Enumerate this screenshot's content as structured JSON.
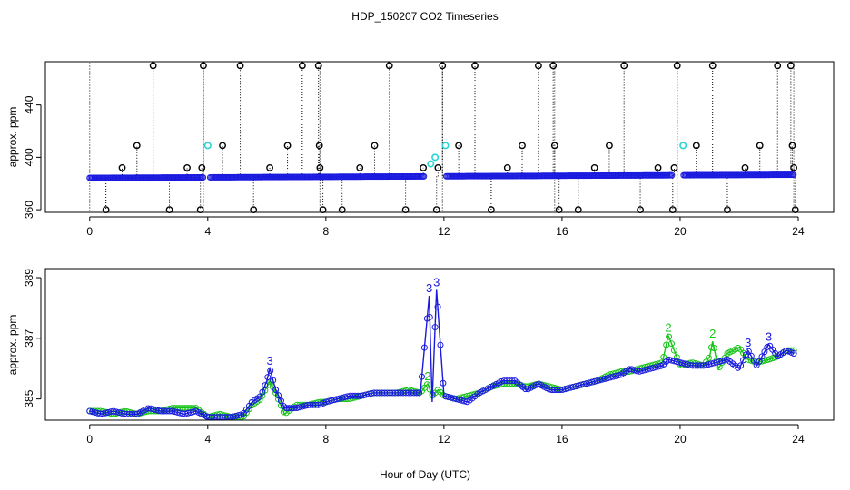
{
  "figure": {
    "title": "HDP_150207  CO2 Timeseries",
    "xlabel": "Hour of Day (UTC)"
  },
  "colors": {
    "series_main": "#1a1adf",
    "series_alt": "#19c419",
    "flag_marker": "#000000",
    "cyan_marker": "#2ad4d4",
    "frame": "#000000"
  },
  "chart_data": [
    {
      "type": "scatter",
      "name": "top-panel",
      "title": "",
      "xlabel": "",
      "ylabel": "approx. ppm",
      "xlim": [
        -1.5,
        25.2
      ],
      "ylim": [
        358,
        473
      ],
      "xticks": [
        0,
        4,
        8,
        12,
        16,
        20,
        24
      ],
      "yticks": [
        360,
        400,
        440
      ],
      "baseline": {
        "x_start": 0.0,
        "x_end": 23.85,
        "y_start": 384.3,
        "y_end": 386.7,
        "gaps": [
          [
            3.85,
            4.05
          ],
          [
            11.35,
            12.05
          ],
          [
            19.75,
            20.1
          ]
        ]
      },
      "spike_markers": [
        {
          "x": 0.55,
          "y": 360
        },
        {
          "x": 1.1,
          "y": 392
        },
        {
          "x": 1.6,
          "y": 409
        },
        {
          "x": 2.15,
          "y": 470
        },
        {
          "x": 2.7,
          "y": 360
        },
        {
          "x": 3.3,
          "y": 392
        },
        {
          "x": 3.75,
          "y": 360
        },
        {
          "x": 3.8,
          "y": 392
        },
        {
          "x": 3.85,
          "y": 470
        },
        {
          "x": 4.5,
          "y": 409
        },
        {
          "x": 5.1,
          "y": 470
        },
        {
          "x": 5.55,
          "y": 360
        },
        {
          "x": 6.1,
          "y": 392
        },
        {
          "x": 6.7,
          "y": 409
        },
        {
          "x": 7.2,
          "y": 470
        },
        {
          "x": 7.75,
          "y": 470
        },
        {
          "x": 7.78,
          "y": 409
        },
        {
          "x": 7.8,
          "y": 392
        },
        {
          "x": 7.9,
          "y": 360
        },
        {
          "x": 8.55,
          "y": 360
        },
        {
          "x": 9.15,
          "y": 392
        },
        {
          "x": 9.65,
          "y": 409
        },
        {
          "x": 10.15,
          "y": 470
        },
        {
          "x": 10.7,
          "y": 360
        },
        {
          "x": 11.3,
          "y": 392
        },
        {
          "x": 11.75,
          "y": 360
        },
        {
          "x": 11.8,
          "y": 392
        },
        {
          "x": 11.95,
          "y": 470
        },
        {
          "x": 12.5,
          "y": 409
        },
        {
          "x": 13.05,
          "y": 470
        },
        {
          "x": 13.6,
          "y": 360
        },
        {
          "x": 14.15,
          "y": 392
        },
        {
          "x": 14.65,
          "y": 409
        },
        {
          "x": 15.2,
          "y": 470
        },
        {
          "x": 15.7,
          "y": 470
        },
        {
          "x": 15.75,
          "y": 409
        },
        {
          "x": 15.9,
          "y": 360
        },
        {
          "x": 16.55,
          "y": 360
        },
        {
          "x": 17.1,
          "y": 392
        },
        {
          "x": 17.6,
          "y": 409
        },
        {
          "x": 18.1,
          "y": 470
        },
        {
          "x": 18.65,
          "y": 360
        },
        {
          "x": 19.25,
          "y": 392
        },
        {
          "x": 19.75,
          "y": 360
        },
        {
          "x": 19.8,
          "y": 392
        },
        {
          "x": 19.9,
          "y": 470
        },
        {
          "x": 20.55,
          "y": 409
        },
        {
          "x": 21.1,
          "y": 470
        },
        {
          "x": 21.6,
          "y": 360
        },
        {
          "x": 22.2,
          "y": 392
        },
        {
          "x": 22.7,
          "y": 409
        },
        {
          "x": 23.3,
          "y": 470
        },
        {
          "x": 23.75,
          "y": 470
        },
        {
          "x": 23.8,
          "y": 409
        },
        {
          "x": 23.85,
          "y": 392
        },
        {
          "x": 23.9,
          "y": 360
        }
      ],
      "cyan_markers": [
        {
          "x": 4.0,
          "y": 409
        },
        {
          "x": 11.55,
          "y": 395
        },
        {
          "x": 11.7,
          "y": 400
        },
        {
          "x": 12.05,
          "y": 409
        },
        {
          "x": 20.1,
          "y": 409
        }
      ],
      "dotted_flag_lines": [
        0.0,
        3.85,
        7.8,
        11.95,
        15.75,
        19.9,
        23.85
      ]
    },
    {
      "type": "line",
      "name": "bottom-panel",
      "title": "",
      "xlabel": "Hour of Day (UTC)",
      "ylabel": "approx. ppm",
      "xlim": [
        -1.5,
        25.2
      ],
      "ylim": [
        384.3,
        389.3
      ],
      "xticks": [
        0,
        4,
        8,
        12,
        16,
        20,
        24
      ],
      "yticks": [
        385,
        387,
        389
      ],
      "series": [
        {
          "name": "3",
          "marker": "o",
          "points": [
            [
              0.0,
              384.6
            ],
            [
              0.4,
              384.5
            ],
            [
              0.8,
              384.6
            ],
            [
              1.2,
              384.5
            ],
            [
              1.6,
              384.5
            ],
            [
              2.0,
              384.7
            ],
            [
              2.4,
              384.6
            ],
            [
              2.8,
              384.6
            ],
            [
              3.2,
              384.5
            ],
            [
              3.6,
              384.6
            ],
            [
              4.0,
              384.4
            ],
            [
              4.4,
              384.4
            ],
            [
              4.8,
              384.4
            ],
            [
              5.2,
              384.5
            ],
            [
              5.5,
              384.9
            ],
            [
              5.8,
              385.1
            ],
            [
              6.0,
              385.6
            ],
            [
              6.1,
              386.0
            ],
            [
              6.3,
              385.3
            ],
            [
              6.6,
              384.7
            ],
            [
              7.0,
              384.7
            ],
            [
              7.4,
              384.8
            ],
            [
              7.8,
              384.8
            ],
            [
              8.0,
              384.9
            ],
            [
              8.4,
              385.0
            ],
            [
              8.8,
              385.1
            ],
            [
              9.2,
              385.1
            ],
            [
              9.6,
              385.2
            ],
            [
              10.0,
              385.2
            ],
            [
              10.4,
              385.2
            ],
            [
              10.8,
              385.2
            ],
            [
              11.2,
              385.2
            ],
            [
              11.5,
              388.4
            ],
            [
              11.6,
              384.9
            ],
            [
              11.75,
              388.6
            ],
            [
              12.0,
              385.1
            ],
            [
              12.4,
              385.0
            ],
            [
              12.8,
              384.9
            ],
            [
              13.2,
              385.2
            ],
            [
              13.6,
              385.4
            ],
            [
              14.0,
              385.6
            ],
            [
              14.4,
              385.6
            ],
            [
              14.8,
              385.3
            ],
            [
              15.2,
              385.5
            ],
            [
              15.6,
              385.3
            ],
            [
              16.0,
              385.3
            ],
            [
              16.4,
              385.4
            ],
            [
              16.8,
              385.5
            ],
            [
              17.2,
              385.6
            ],
            [
              17.6,
              385.7
            ],
            [
              18.0,
              385.8
            ],
            [
              18.3,
              386.0
            ],
            [
              18.6,
              385.9
            ],
            [
              19.0,
              386.0
            ],
            [
              19.4,
              386.1
            ],
            [
              19.6,
              386.3
            ],
            [
              20.0,
              386.2
            ],
            [
              20.4,
              386.1
            ],
            [
              20.8,
              386.1
            ],
            [
              21.2,
              386.2
            ],
            [
              21.6,
              386.3
            ],
            [
              22.0,
              386.0
            ],
            [
              22.3,
              386.6
            ],
            [
              22.6,
              386.1
            ],
            [
              23.0,
              386.8
            ],
            [
              23.3,
              386.4
            ],
            [
              23.6,
              386.6
            ],
            [
              23.85,
              386.5
            ]
          ]
        },
        {
          "name": "2",
          "marker": "o",
          "points": [
            [
              0.0,
              384.6
            ],
            [
              0.4,
              384.6
            ],
            [
              0.8,
              384.5
            ],
            [
              1.2,
              384.6
            ],
            [
              1.6,
              384.5
            ],
            [
              2.0,
              384.6
            ],
            [
              2.4,
              384.6
            ],
            [
              2.8,
              384.7
            ],
            [
              3.2,
              384.7
            ],
            [
              3.6,
              384.7
            ],
            [
              4.0,
              384.4
            ],
            [
              4.4,
              384.5
            ],
            [
              4.8,
              384.4
            ],
            [
              5.2,
              384.4
            ],
            [
              5.5,
              384.8
            ],
            [
              5.8,
              385.0
            ],
            [
              6.0,
              385.4
            ],
            [
              6.1,
              385.6
            ],
            [
              6.3,
              385.2
            ],
            [
              6.6,
              384.5
            ],
            [
              7.0,
              384.8
            ],
            [
              7.4,
              384.8
            ],
            [
              7.8,
              384.9
            ],
            [
              8.0,
              384.9
            ],
            [
              8.4,
              385.0
            ],
            [
              8.8,
              385.0
            ],
            [
              9.2,
              385.1
            ],
            [
              9.6,
              385.2
            ],
            [
              10.0,
              385.2
            ],
            [
              10.4,
              385.2
            ],
            [
              10.8,
              385.3
            ],
            [
              11.2,
              385.2
            ],
            [
              11.45,
              385.5
            ],
            [
              11.6,
              385.1
            ],
            [
              11.8,
              385.3
            ],
            [
              12.0,
              385.1
            ],
            [
              12.4,
              385.0
            ],
            [
              12.8,
              385.1
            ],
            [
              13.2,
              385.2
            ],
            [
              13.6,
              385.4
            ],
            [
              14.0,
              385.5
            ],
            [
              14.4,
              385.5
            ],
            [
              14.8,
              385.4
            ],
            [
              15.2,
              385.5
            ],
            [
              15.6,
              385.4
            ],
            [
              16.0,
              385.3
            ],
            [
              16.4,
              385.4
            ],
            [
              16.8,
              385.5
            ],
            [
              17.2,
              385.6
            ],
            [
              17.6,
              385.8
            ],
            [
              18.0,
              385.9
            ],
            [
              18.3,
              385.9
            ],
            [
              18.6,
              386.0
            ],
            [
              19.0,
              386.1
            ],
            [
              19.4,
              386.2
            ],
            [
              19.6,
              387.1
            ],
            [
              20.0,
              386.1
            ],
            [
              20.4,
              386.2
            ],
            [
              20.8,
              386.1
            ],
            [
              21.0,
              386.4
            ],
            [
              21.1,
              386.9
            ],
            [
              21.3,
              386.0
            ],
            [
              21.6,
              386.5
            ],
            [
              22.0,
              386.7
            ],
            [
              22.3,
              386.3
            ],
            [
              22.6,
              386.2
            ],
            [
              23.0,
              386.3
            ],
            [
              23.3,
              386.4
            ],
            [
              23.6,
              386.6
            ],
            [
              23.85,
              386.6
            ]
          ]
        }
      ]
    }
  ]
}
